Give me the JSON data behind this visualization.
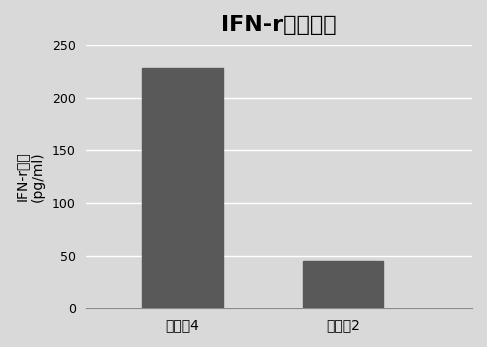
{
  "title": "IFN-r释放实验",
  "categories": [
    "实施例4",
    "对比例2"
  ],
  "values": [
    228,
    45
  ],
  "bar_color": "#595959",
  "bar_width": 0.5,
  "ylim": [
    0,
    250
  ],
  "yticks": [
    0,
    50,
    100,
    150,
    200,
    250
  ],
  "ylabel_line1": "IFN-r浓度",
  "ylabel_line2": "(pg/ml)",
  "background_color": "#d9d9d9",
  "grid_color": "#ffffff",
  "title_fontsize": 16,
  "axis_fontsize": 10,
  "tick_fontsize": 9,
  "ylabel_fontsize": 10
}
